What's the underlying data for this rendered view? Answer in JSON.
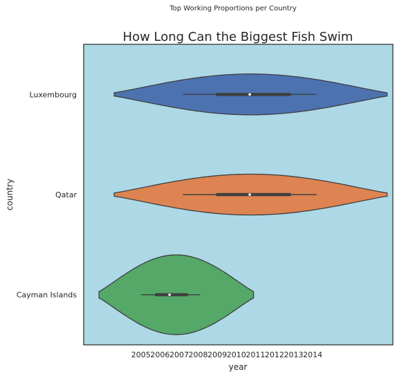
{
  "page": {
    "suptitle": "Top Working Proportions per Country"
  },
  "chart_data": {
    "type": "violin",
    "orientation": "horizontal",
    "title": "How Long Can the Biggest Fish Swim",
    "xlabel": "year",
    "ylabel": "country",
    "categories": [
      "Luxembourg",
      "Qatar",
      "Cayman Islands"
    ],
    "x_ticks": [
      2005,
      2006,
      2007,
      2008,
      2009,
      2010,
      2011,
      2012,
      2013,
      2014
    ],
    "x_tick_labels": [
      "2005",
      "2006",
      "2007",
      "2008",
      "2009",
      "2010",
      "2011",
      "2012",
      "2013",
      "2014"
    ],
    "xlim": [
      2002.0,
      2018.2
    ],
    "grid": false,
    "plot_background": "#ADD8E6",
    "violins": [
      {
        "category": "Luxembourg",
        "color": "#4C72B0",
        "range": [
          2003.6,
          2017.9
        ],
        "whisker": [
          2007.2,
          2014.2
        ],
        "quartiles": [
          2009.0,
          2012.8
        ],
        "median": 2010.7,
        "max_half_width_fraction": 0.82
      },
      {
        "category": "Qatar",
        "color": "#DD8452",
        "range": [
          2003.6,
          2017.9
        ],
        "whisker": [
          2007.2,
          2014.2
        ],
        "quartiles": [
          2009.0,
          2012.8
        ],
        "median": 2010.7,
        "max_half_width_fraction": 0.82
      },
      {
        "category": "Cayman Islands",
        "color": "#55A868",
        "range": [
          2002.8,
          2010.9
        ],
        "whisker": [
          2005.0,
          2008.1
        ],
        "quartiles": [
          2005.8,
          2007.4
        ],
        "median": 2006.5,
        "max_half_width_fraction": 1.6
      }
    ]
  }
}
